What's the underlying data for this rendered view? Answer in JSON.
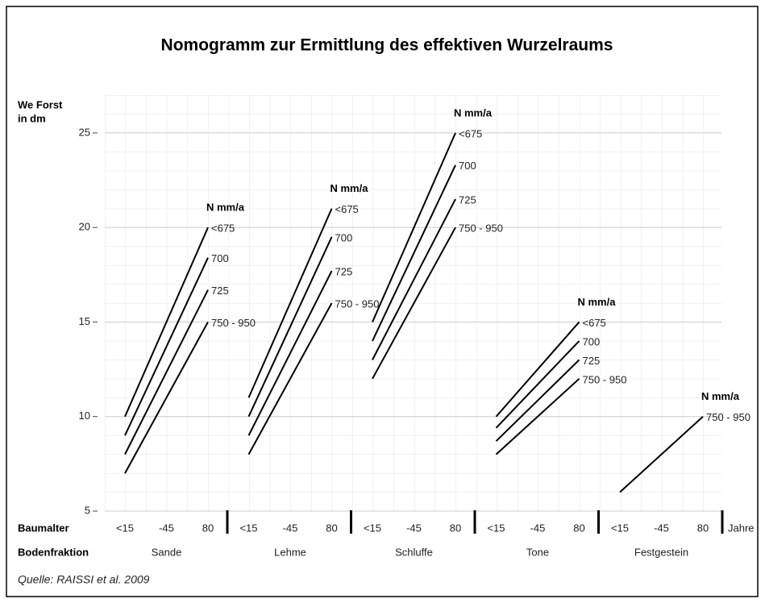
{
  "chart_data": {
    "type": "line",
    "title": "Nomogramm zur Ermittlung des effektiven Wurzelraums",
    "y_label": [
      "We Forst",
      "in dm"
    ],
    "x_label": "Baumalter",
    "x_unit": "Jahre",
    "group_label": "Bodenfraktion",
    "legend_title": "N mm/a",
    "source": "Quelle: RAISSI et al. 2009",
    "ylim": [
      5,
      27
    ],
    "yticks": [
      5,
      10,
      15,
      20,
      25
    ],
    "grid": true,
    "color": "#000000",
    "groups": [
      {
        "name": "Sande",
        "categories": [
          "<15",
          "-45",
          "80"
        ],
        "series": [
          {
            "name": "<675",
            "values": [
              10,
              15,
              20
            ]
          },
          {
            "name": "700",
            "values": [
              9,
              13.7,
              18.4
            ]
          },
          {
            "name": "725",
            "values": [
              8,
              12.35,
              16.7
            ]
          },
          {
            "name": "750 - 950",
            "values": [
              7,
              11,
              15
            ]
          }
        ]
      },
      {
        "name": "Lehme",
        "categories": [
          "<15",
          "-45",
          "80"
        ],
        "series": [
          {
            "name": "<675",
            "values": [
              11,
              16,
              21
            ]
          },
          {
            "name": "700",
            "values": [
              10,
              14.75,
              19.5
            ]
          },
          {
            "name": "725",
            "values": [
              9,
              13.35,
              17.7
            ]
          },
          {
            "name": "750 - 950",
            "values": [
              8,
              12,
              16
            ]
          }
        ]
      },
      {
        "name": "Schluffe",
        "categories": [
          "<15",
          "-45",
          "80"
        ],
        "series": [
          {
            "name": "<675",
            "values": [
              15,
              20,
              25
            ]
          },
          {
            "name": "700",
            "values": [
              14,
              18.65,
              23.3
            ]
          },
          {
            "name": "725",
            "values": [
              13,
              17.25,
              21.5
            ]
          },
          {
            "name": "750 - 950",
            "values": [
              12,
              16,
              20
            ]
          }
        ]
      },
      {
        "name": "Tone",
        "categories": [
          "<15",
          "-45",
          "80"
        ],
        "series": [
          {
            "name": "<675",
            "values": [
              10,
              12.5,
              15
            ]
          },
          {
            "name": "700",
            "values": [
              9.4,
              11.7,
              14
            ]
          },
          {
            "name": "725",
            "values": [
              8.7,
              10.85,
              13
            ]
          },
          {
            "name": "750 - 950",
            "values": [
              8,
              10,
              12
            ]
          }
        ]
      },
      {
        "name": "Festgestein",
        "categories": [
          "<15",
          "-45",
          "80"
        ],
        "series": [
          {
            "name": "750 - 950",
            "values": [
              6,
              8,
              10
            ]
          }
        ]
      }
    ]
  }
}
